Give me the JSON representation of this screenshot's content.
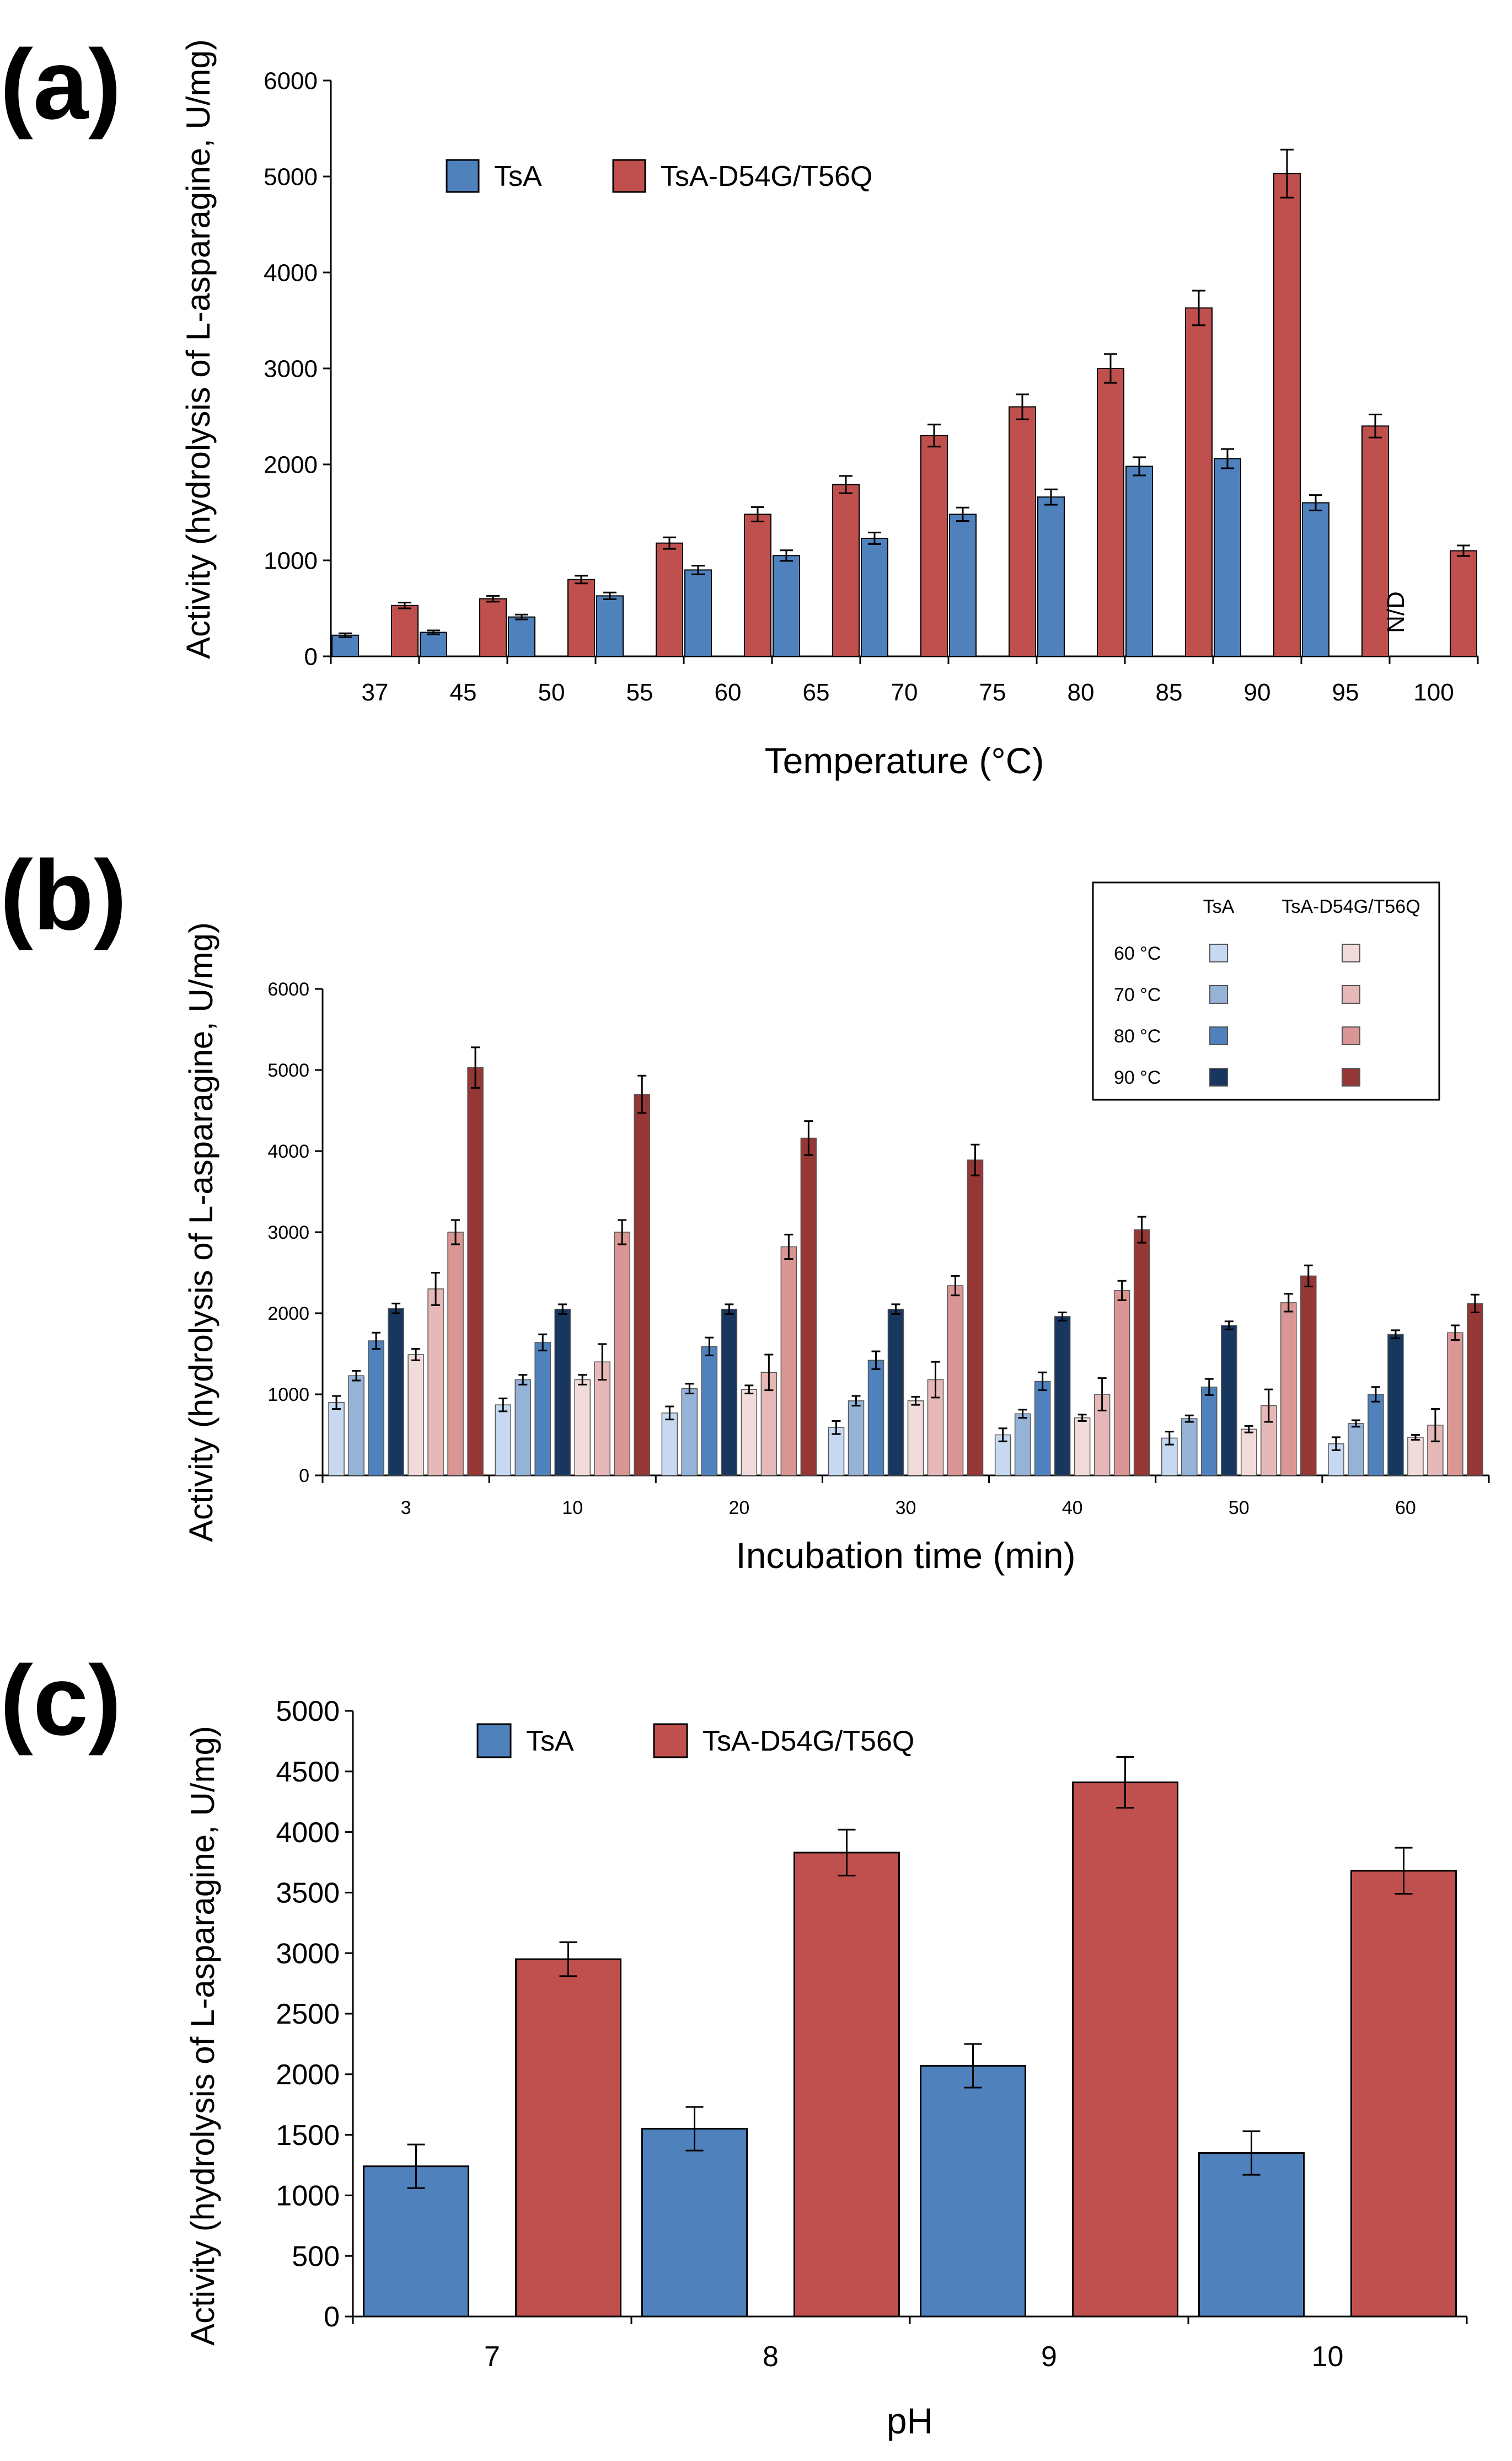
{
  "colors": {
    "tsa": "#4f81bd",
    "mutant": "#c0504d",
    "b_tsa": [
      "#c6d9f1",
      "#95b3d7",
      "#4f81bd",
      "#17375e"
    ],
    "b_mutant": [
      "#f2dcdb",
      "#e6b9b8",
      "#d99694",
      "#953735"
    ]
  },
  "chart_data": [
    {
      "id": "a",
      "panel_label": "(a)",
      "type": "bar",
      "xlabel": "Temperature (°C)",
      "ylabel": "Activity (hydrolysis of L-asparagine, U/mg)",
      "ylim": [
        0,
        6000
      ],
      "yticks": [
        0,
        1000,
        2000,
        3000,
        4000,
        5000,
        6000
      ],
      "categories": [
        "37",
        "45",
        "50",
        "55",
        "60",
        "65",
        "70",
        "75",
        "80",
        "85",
        "90",
        "95",
        "100"
      ],
      "legend": [
        "TsA",
        "TsA-D54G/T56Q"
      ],
      "annotation": "N/D",
      "series": [
        {
          "name": "TsA",
          "values": [
            220,
            250,
            410,
            630,
            900,
            1050,
            1230,
            1480,
            1660,
            1980,
            2060,
            1600,
            null
          ],
          "errors": [
            20,
            20,
            25,
            35,
            45,
            55,
            60,
            70,
            80,
            95,
            100,
            80,
            null
          ]
        },
        {
          "name": "TsA-D54G/T56Q",
          "values": [
            530,
            600,
            800,
            1180,
            1480,
            1790,
            2300,
            2600,
            3000,
            3630,
            5030,
            2400,
            1100
          ],
          "errors": [
            30,
            30,
            40,
            60,
            75,
            90,
            115,
            130,
            150,
            180,
            250,
            120,
            55
          ]
        }
      ]
    },
    {
      "id": "b",
      "panel_label": "(b)",
      "type": "bar",
      "xlabel": "Incubation time (min)",
      "ylabel": "Activity (hydrolysis of L-asparagine, U/mg)",
      "ylim": [
        0,
        6000
      ],
      "yticks": [
        0,
        1000,
        2000,
        3000,
        4000,
        5000,
        6000
      ],
      "categories": [
        "3",
        "10",
        "20",
        "30",
        "40",
        "50",
        "60"
      ],
      "legend_header": [
        "TsA",
        "TsA-D54G/T56Q"
      ],
      "legend_rows": [
        "60 °C",
        "70 °C",
        "80 °C",
        "90 °C"
      ],
      "series": [
        {
          "name": "TsA 60 °C",
          "values": [
            900,
            870,
            770,
            590,
            500,
            460,
            390
          ],
          "errors": [
            80,
            80,
            80,
            80,
            80,
            80,
            80
          ]
        },
        {
          "name": "TsA 70 °C",
          "values": [
            1230,
            1180,
            1070,
            920,
            760,
            700,
            640
          ],
          "errors": [
            60,
            60,
            60,
            60,
            50,
            40,
            40
          ]
        },
        {
          "name": "TsA 80 °C",
          "values": [
            1660,
            1640,
            1590,
            1420,
            1160,
            1090,
            1000
          ],
          "errors": [
            100,
            100,
            110,
            110,
            110,
            100,
            90
          ]
        },
        {
          "name": "TsA 90 °C",
          "values": [
            2060,
            2050,
            2050,
            2050,
            1960,
            1850,
            1740
          ],
          "errors": [
            60,
            60,
            60,
            60,
            50,
            50,
            50
          ]
        },
        {
          "name": "TsA-D54G/T56Q 60 °C",
          "values": [
            1490,
            1180,
            1060,
            920,
            710,
            570,
            470
          ],
          "errors": [
            70,
            60,
            50,
            50,
            40,
            40,
            30
          ]
        },
        {
          "name": "TsA-D54G/T56Q 70 °C",
          "values": [
            2300,
            1400,
            1270,
            1180,
            1000,
            860,
            620
          ],
          "errors": [
            200,
            220,
            220,
            220,
            200,
            200,
            200
          ]
        },
        {
          "name": "TsA-D54G/T56Q 80 °C",
          "values": [
            3000,
            3000,
            2820,
            2340,
            2280,
            2130,
            1760
          ],
          "errors": [
            150,
            150,
            150,
            120,
            120,
            110,
            90
          ]
        },
        {
          "name": "TsA-D54G/T56Q 90 °C",
          "values": [
            5030,
            4700,
            4160,
            3890,
            3030,
            2460,
            2120
          ],
          "errors": [
            250,
            230,
            210,
            190,
            160,
            130,
            110
          ]
        }
      ]
    },
    {
      "id": "c",
      "panel_label": "(c)",
      "type": "bar",
      "xlabel": "pH",
      "ylabel": "Activity (hydrolysis of L-asparagine, U/mg)",
      "ylim": [
        0,
        5000
      ],
      "yticks": [
        0,
        500,
        1000,
        1500,
        2000,
        2500,
        3000,
        3500,
        4000,
        4500,
        5000
      ],
      "categories": [
        "7",
        "8",
        "9",
        "10"
      ],
      "legend": [
        "TsA",
        "TsA-D54G/T56Q"
      ],
      "series": [
        {
          "name": "TsA",
          "values": [
            1240,
            1550,
            2070,
            1350
          ],
          "errors": [
            180,
            180,
            180,
            180
          ]
        },
        {
          "name": "TsA-D54G/T56Q",
          "values": [
            2950,
            3830,
            4410,
            3680
          ],
          "errors": [
            140,
            190,
            210,
            190
          ]
        }
      ]
    }
  ]
}
